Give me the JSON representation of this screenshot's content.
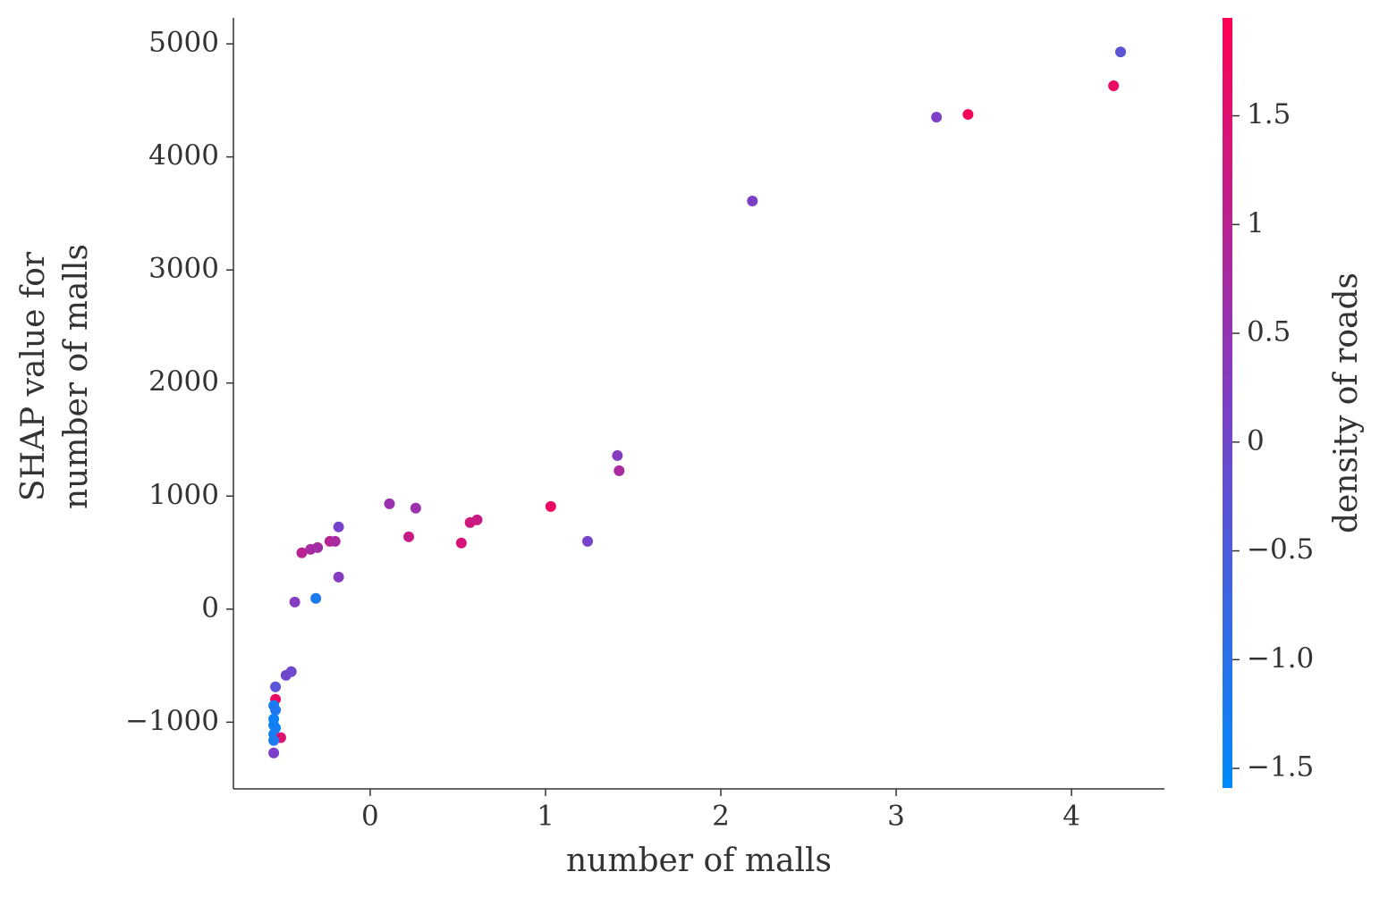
{
  "chart_data": {
    "type": "scatter",
    "xlabel": "number of malls",
    "ylabel": [
      "SHAP value for",
      "number of malls"
    ],
    "xlim": [
      -0.78,
      4.53
    ],
    "xticks": [
      0,
      1,
      2,
      3,
      4
    ],
    "ylim": [
      -1590,
      5230
    ],
    "yticks": [
      {
        "value": -1000,
        "label": "−1000"
      },
      0,
      1000,
      2000,
      3000,
      4000,
      5000
    ],
    "x": [
      4.28,
      4.24,
      3.23,
      3.41,
      2.18,
      1.41,
      1.42,
      1.03,
      1.24,
      0.11,
      0.26,
      0.22,
      0.52,
      0.57,
      0.61,
      -0.18,
      -0.39,
      -0.34,
      -0.3,
      -0.23,
      -0.2,
      -0.18,
      -0.43,
      -0.31,
      -0.45,
      -0.48,
      -0.54,
      -0.54,
      -0.55,
      -0.54,
      -0.55,
      -0.55,
      -0.54,
      -0.55,
      -0.51,
      -0.55,
      -0.55
    ],
    "values": [
      4929,
      4629,
      4352,
      4376,
      3610,
      1359,
      1224,
      908,
      600,
      932,
      893,
      640,
      585,
      766,
      790,
      727,
      498,
      529,
      545,
      600,
      600,
      284,
      63,
      95,
      -553,
      -585,
      -687,
      -798,
      -853,
      -893,
      -972,
      -1027,
      -1051,
      -1106,
      -1137,
      -1161,
      -1272
    ],
    "color_values": [
      -0.3,
      1.7,
      0.2,
      1.8,
      0.2,
      0.3,
      0.8,
      1.7,
      0.1,
      0.6,
      0.6,
      1.2,
      1.4,
      1.3,
      1.2,
      0.1,
      1.0,
      0.8,
      0.7,
      1.0,
      0.8,
      0.3,
      0.3,
      -1.2,
      0.0,
      0.0,
      -0.3,
      1.7,
      -1.3,
      -1.1,
      -1.4,
      -1.4,
      -1.3,
      -1.3,
      1.5,
      -1.2,
      0.2
    ],
    "colorbar": {
      "label": "density of roads",
      "clim": [
        -1.59,
        1.95
      ],
      "ticks": [
        {
          "value": -1.5,
          "label": "−1.5"
        },
        {
          "value": -1.0,
          "label": "−1.0"
        },
        {
          "value": -0.5,
          "label": "−0.5"
        },
        0.0,
        0.5,
        1.0,
        1.5
      ],
      "colormap": [
        "#008afb",
        "#7c40c8",
        "#ff0052"
      ]
    }
  }
}
